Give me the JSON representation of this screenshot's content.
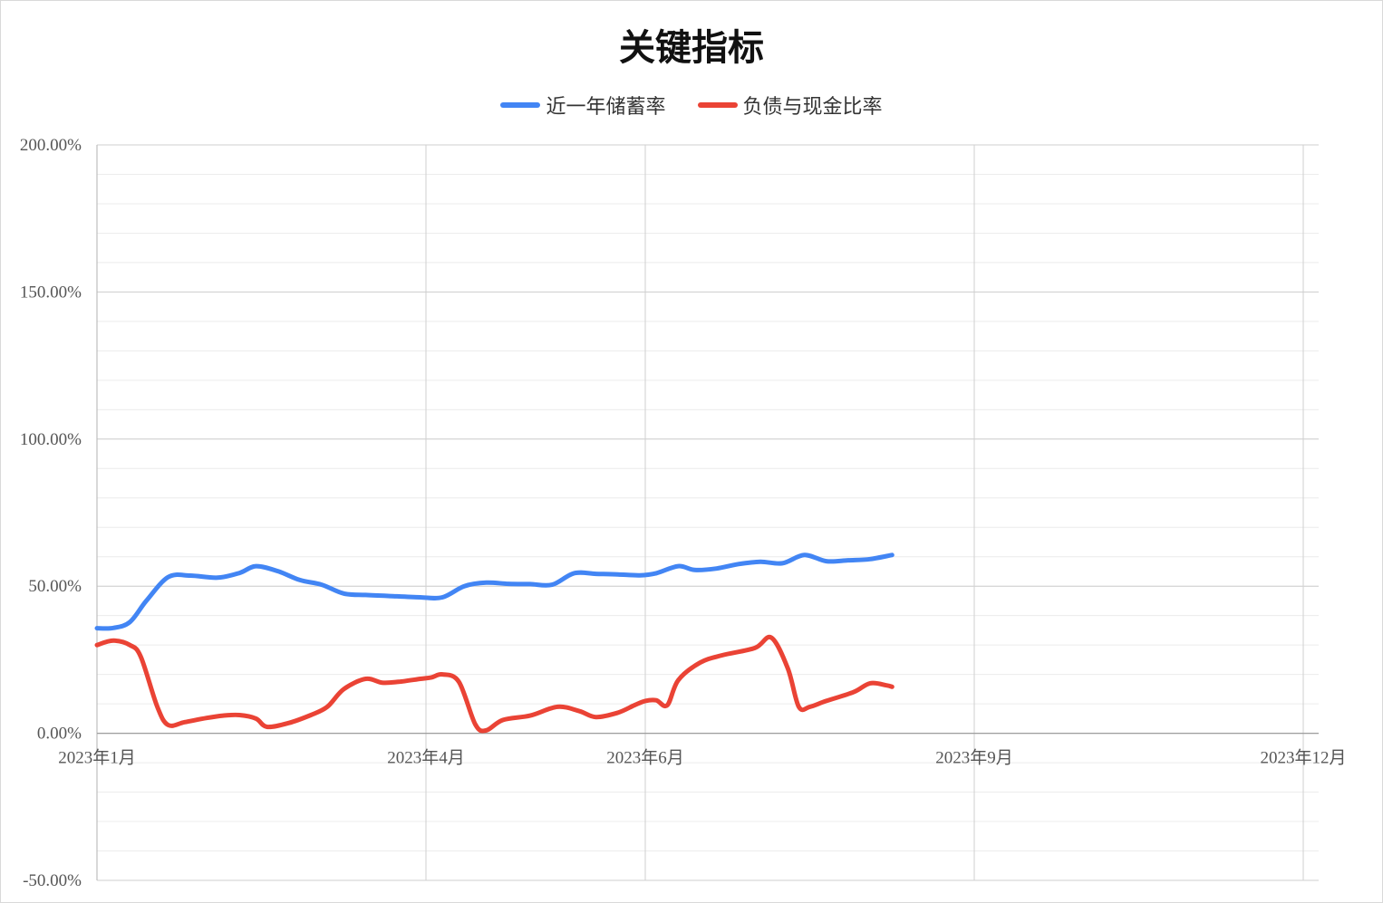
{
  "chart_data": {
    "type": "line",
    "title": "关键指标",
    "xlabel": "",
    "ylabel": "",
    "x_ticks": [
      {
        "label": "2023年1月",
        "month": 1
      },
      {
        "label": "2023年4月",
        "month": 4
      },
      {
        "label": "2023年6月",
        "month": 6
      },
      {
        "label": "2023年9月",
        "month": 9
      },
      {
        "label": "2023年12月",
        "month": 12
      }
    ],
    "xlim": [
      1,
      12
    ],
    "ylim": [
      -0.5,
      2.0
    ],
    "y_ticks": [
      {
        "label": "200.00%",
        "value": 2.0
      },
      {
        "label": "150.00%",
        "value": 1.5
      },
      {
        "label": "100.00%",
        "value": 1.0
      },
      {
        "label": "50.00%",
        "value": 0.5
      },
      {
        "label": "0.00%",
        "value": 0.0
      },
      {
        "label": "-50.00%",
        "value": -0.5
      }
    ],
    "minor_grid_step": 0.1,
    "grid": true,
    "legend_position": "top",
    "series": [
      {
        "name": "近一年储蓄率",
        "color": "#4285f4",
        "points": [
          [
            1.0,
            0.357
          ],
          [
            1.15,
            0.358
          ],
          [
            1.3,
            0.378
          ],
          [
            1.45,
            0.45
          ],
          [
            1.65,
            0.531
          ],
          [
            1.85,
            0.536
          ],
          [
            2.1,
            0.529
          ],
          [
            2.3,
            0.545
          ],
          [
            2.45,
            0.568
          ],
          [
            2.65,
            0.551
          ],
          [
            2.85,
            0.521
          ],
          [
            3.05,
            0.505
          ],
          [
            3.25,
            0.475
          ],
          [
            3.45,
            0.47
          ],
          [
            3.7,
            0.466
          ],
          [
            3.95,
            0.462
          ],
          [
            4.15,
            0.462
          ],
          [
            4.35,
            0.5
          ],
          [
            4.55,
            0.512
          ],
          [
            4.75,
            0.508
          ],
          [
            4.95,
            0.507
          ],
          [
            5.15,
            0.505
          ],
          [
            5.35,
            0.544
          ],
          [
            5.55,
            0.542
          ],
          [
            5.75,
            0.54
          ],
          [
            5.95,
            0.537
          ],
          [
            6.1,
            0.544
          ],
          [
            6.3,
            0.568
          ],
          [
            6.45,
            0.555
          ],
          [
            6.65,
            0.56
          ],
          [
            6.85,
            0.575
          ],
          [
            7.05,
            0.583
          ],
          [
            7.25,
            0.578
          ],
          [
            7.45,
            0.606
          ],
          [
            7.65,
            0.585
          ],
          [
            7.85,
            0.588
          ],
          [
            8.05,
            0.592
          ],
          [
            8.25,
            0.606
          ]
        ]
      },
      {
        "name": "负债与现金比率",
        "color": "#ea4335",
        "points": [
          [
            1.0,
            0.3
          ],
          [
            1.15,
            0.315
          ],
          [
            1.3,
            0.3
          ],
          [
            1.4,
            0.26
          ],
          [
            1.55,
            0.09
          ],
          [
            1.65,
            0.028
          ],
          [
            1.8,
            0.038
          ],
          [
            2.0,
            0.052
          ],
          [
            2.15,
            0.06
          ],
          [
            2.3,
            0.062
          ],
          [
            2.45,
            0.05
          ],
          [
            2.55,
            0.022
          ],
          [
            2.75,
            0.035
          ],
          [
            2.95,
            0.062
          ],
          [
            3.1,
            0.09
          ],
          [
            3.25,
            0.15
          ],
          [
            3.45,
            0.185
          ],
          [
            3.6,
            0.172
          ],
          [
            3.75,
            0.175
          ],
          [
            3.95,
            0.185
          ],
          [
            4.05,
            0.19
          ],
          [
            4.15,
            0.2
          ],
          [
            4.3,
            0.175
          ],
          [
            4.45,
            0.03
          ],
          [
            4.55,
            0.01
          ],
          [
            4.7,
            0.045
          ],
          [
            4.95,
            0.06
          ],
          [
            5.2,
            0.09
          ],
          [
            5.4,
            0.075
          ],
          [
            5.55,
            0.055
          ],
          [
            5.75,
            0.07
          ],
          [
            5.9,
            0.095
          ],
          [
            6.0,
            0.11
          ],
          [
            6.1,
            0.112
          ],
          [
            6.2,
            0.095
          ],
          [
            6.3,
            0.18
          ],
          [
            6.5,
            0.24
          ],
          [
            6.7,
            0.265
          ],
          [
            7.0,
            0.29
          ],
          [
            7.15,
            0.325
          ],
          [
            7.3,
            0.22
          ],
          [
            7.4,
            0.09
          ],
          [
            7.5,
            0.09
          ],
          [
            7.65,
            0.11
          ],
          [
            7.9,
            0.14
          ],
          [
            8.05,
            0.17
          ],
          [
            8.2,
            0.163
          ],
          [
            8.25,
            0.158
          ]
        ]
      }
    ]
  }
}
